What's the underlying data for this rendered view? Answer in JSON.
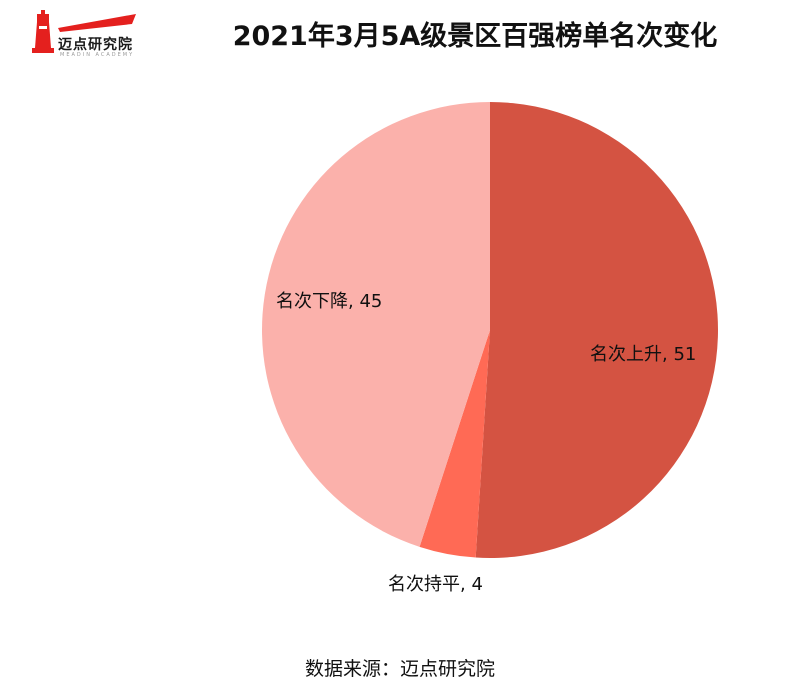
{
  "brand": {
    "logo_text": "迈点研究院",
    "logo_sub": "MEADIN ACADEMY",
    "logo_color": "#e4201e"
  },
  "chart_data": {
    "type": "pie",
    "title": "2021年3月5A级景区百强榜单名次变化",
    "slices": [
      {
        "label": "名次上升",
        "value": 51,
        "color": "#d45342",
        "text": "名次上升, 51"
      },
      {
        "label": "名次持平",
        "value": 4,
        "color": "#ff6a55",
        "text": "名次持平, 4"
      },
      {
        "label": "名次下降",
        "value": 45,
        "color": "#fbb1ab",
        "text": "名次下降, 45"
      }
    ]
  },
  "footer": {
    "source": "数据来源：迈点研究院"
  }
}
